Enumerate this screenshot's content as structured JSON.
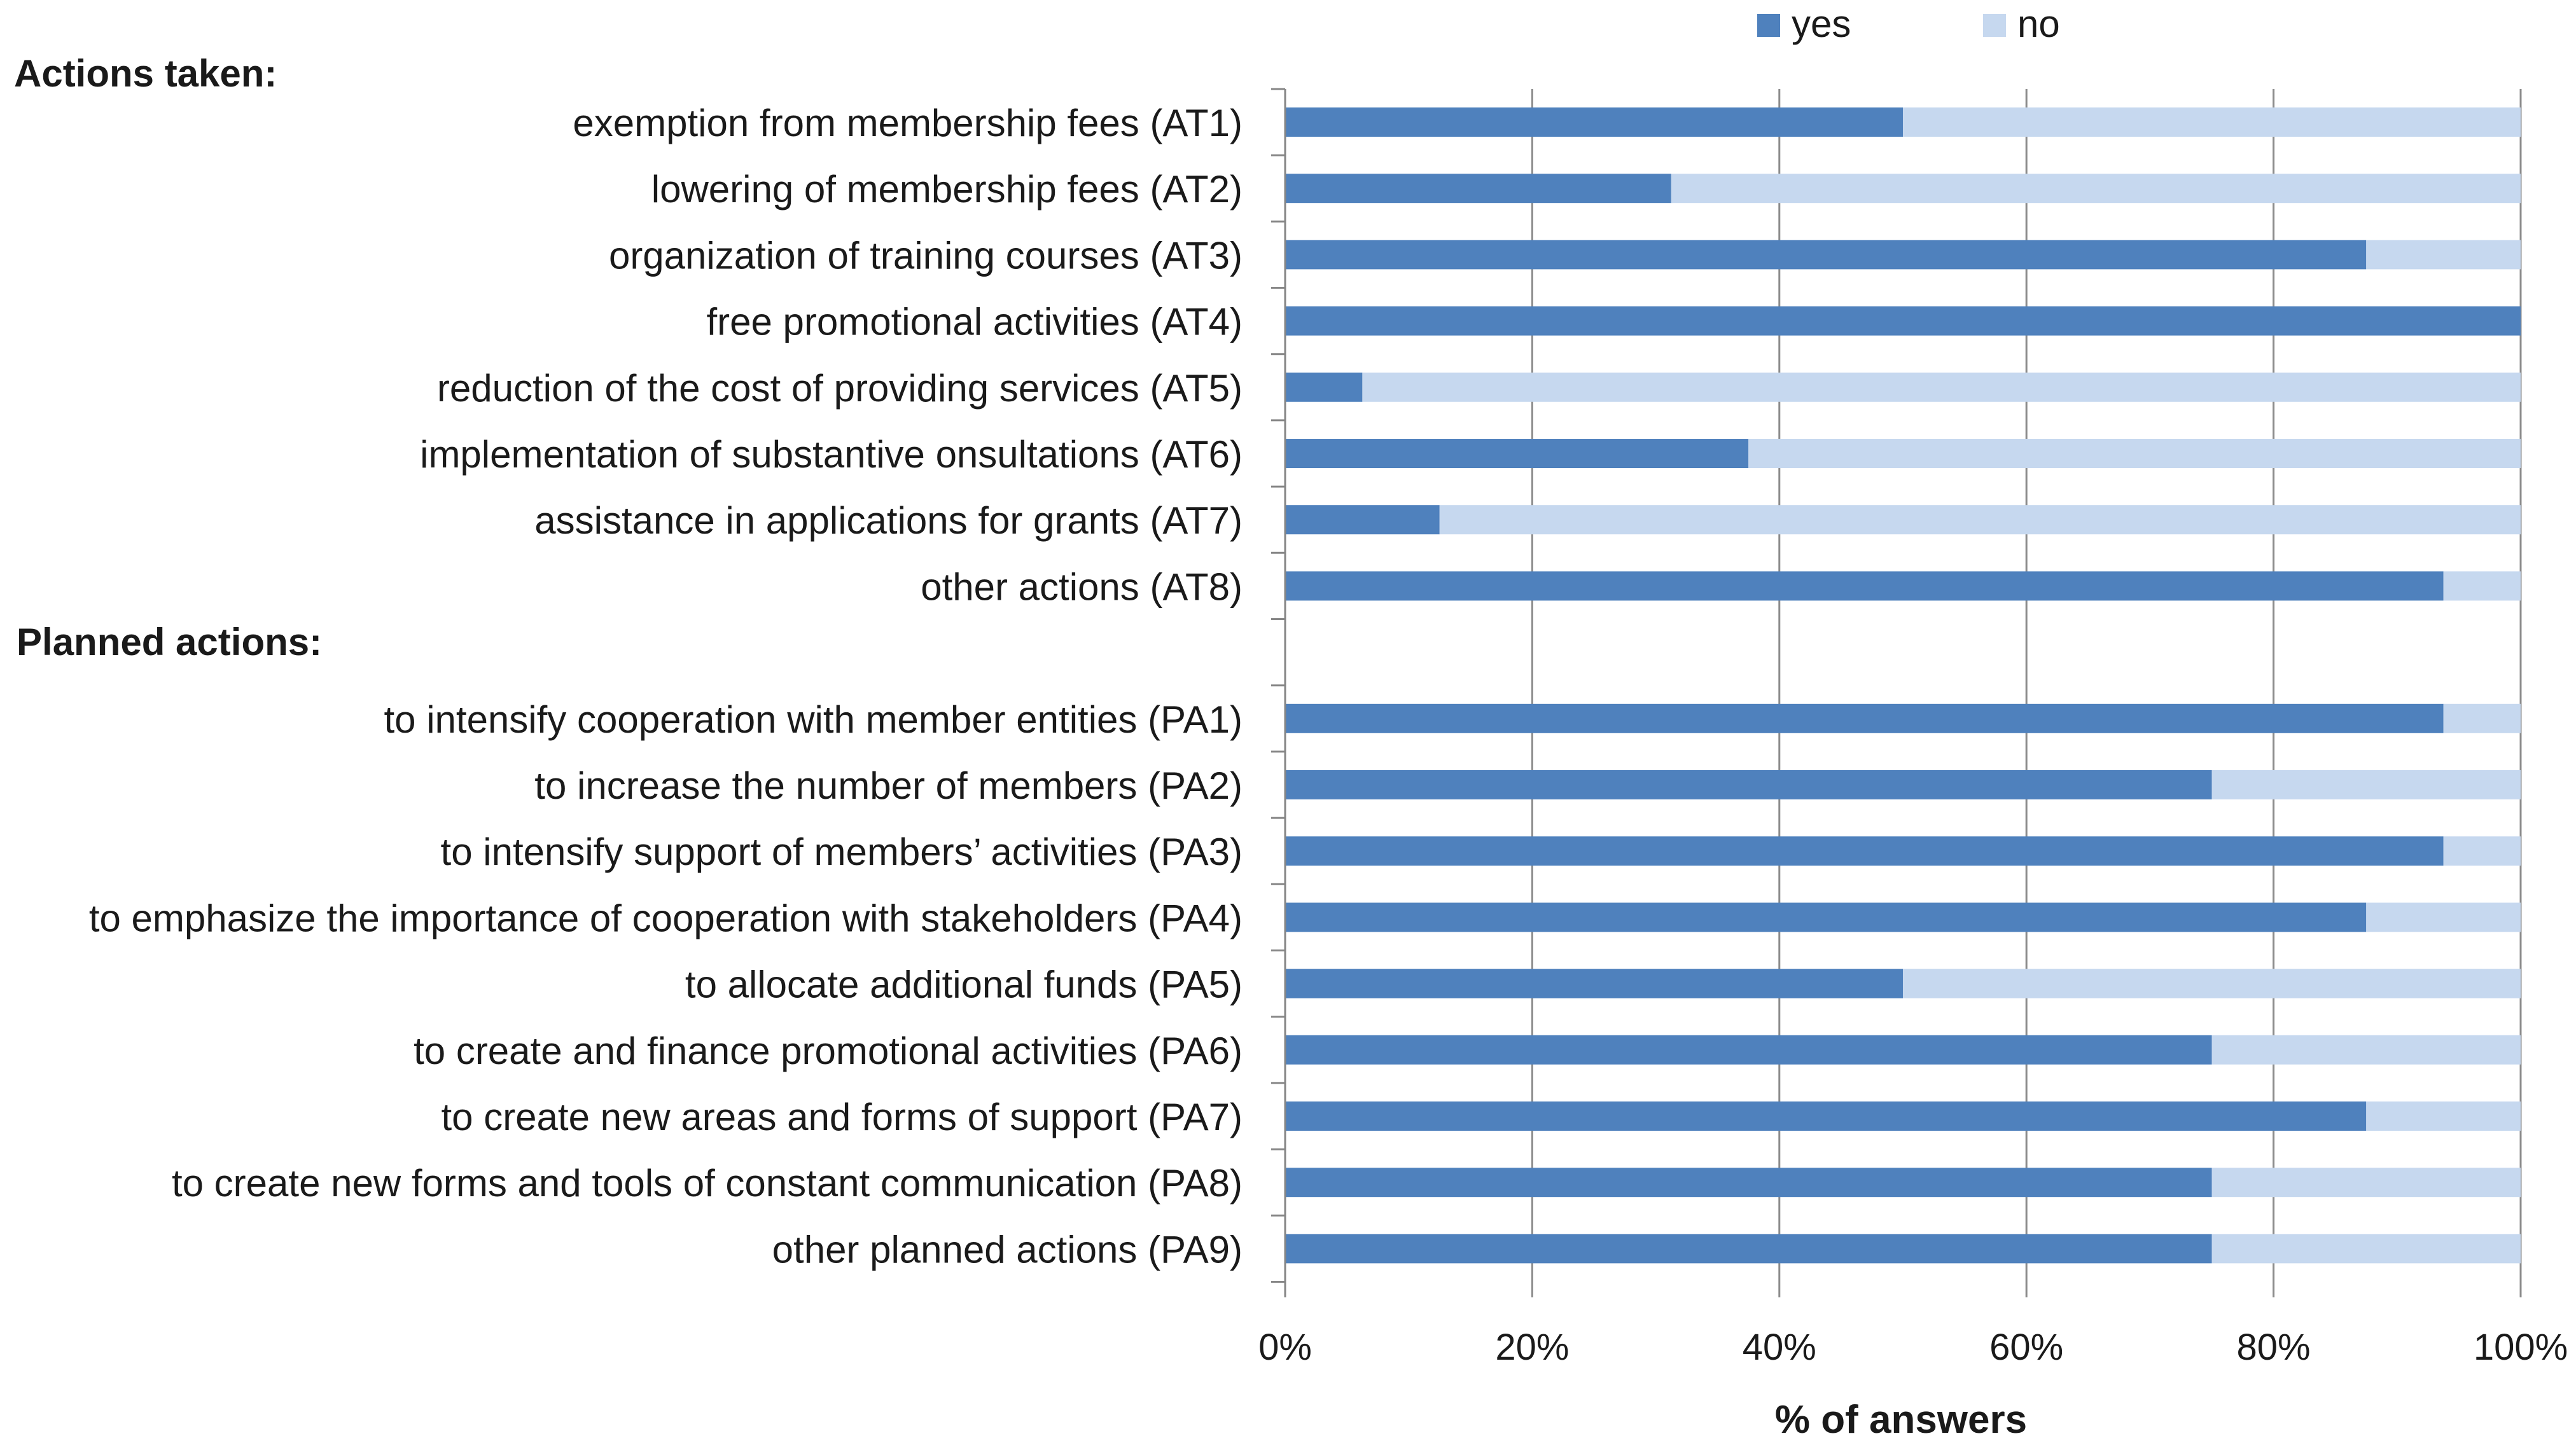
{
  "chart_data": {
    "type": "bar",
    "stacked": true,
    "orientation": "horizontal",
    "xlabel": "% of answers",
    "xlim": [
      0,
      100
    ],
    "xticks": [
      "0%",
      "20%",
      "40%",
      "60%",
      "80%",
      "100%"
    ],
    "legend": {
      "placement": "top-right",
      "entries": [
        {
          "name": "yes",
          "color": "#4f81bd"
        },
        {
          "name": "no",
          "color": "#c6d8ef"
        }
      ]
    },
    "groups": [
      {
        "heading": "Actions taken:",
        "categories": [
          "exemption from membership fees (AT1)",
          "lowering of membership fees  (AT2)",
          "organization of training courses (AT3)",
          "free promotional activities (AT4)",
          "reduction of the cost of providing services (AT5)",
          "implementation of substantive onsultations (AT6)",
          "assistance in applications for grants (AT7)",
          "other actions (AT8)"
        ],
        "series": [
          {
            "name": "yes",
            "values": [
              50,
              31.25,
              87.5,
              100,
              6.25,
              37.5,
              12.5,
              93.75
            ]
          },
          {
            "name": "no",
            "values": [
              50,
              68.75,
              12.5,
              0,
              93.75,
              62.5,
              87.5,
              6.25
            ]
          }
        ]
      },
      {
        "heading": "Planned actions:",
        "categories": [
          "to intensify cooperation with member entities (PA1)",
          "to increase the number of members (PA2)",
          "to intensify support of members’ activities (PA3)",
          "to emphasize the importance of cooperation with stakeholders (PA4)",
          "to allocate additional funds (PA5)",
          "to create and finance promotional activities (PA6)",
          "to create new areas and forms of support (PA7)",
          "to create new forms and tools of constant communication (PA8)",
          "other planned actions (PA9)"
        ],
        "series": [
          {
            "name": "yes",
            "values": [
              93.75,
              75,
              93.75,
              87.5,
              50,
              75,
              87.5,
              75,
              75
            ]
          },
          {
            "name": "no",
            "values": [
              6.25,
              25,
              6.25,
              12.5,
              50,
              25,
              12.5,
              25,
              25
            ]
          }
        ]
      }
    ]
  }
}
